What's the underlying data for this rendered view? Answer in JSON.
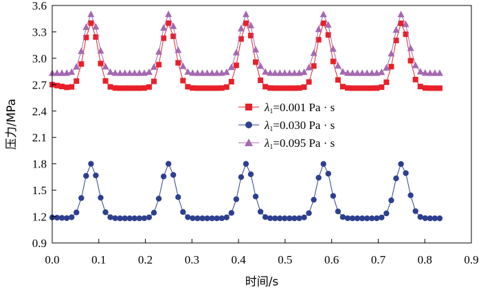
{
  "chart_data": {
    "type": "line",
    "title": "",
    "xlabel": "时间/s",
    "ylabel": "压力/MPa",
    "xlim": [
      0.0,
      0.9
    ],
    "ylim": [
      0.9,
      3.6
    ],
    "xticks": [
      0.0,
      0.1,
      0.2,
      0.3,
      0.4,
      0.5,
      0.6,
      0.7,
      0.8,
      0.9
    ],
    "xtick_labels": [
      "0.0",
      "0.1",
      "0.2",
      "0.3",
      "0.4",
      "0.5",
      "0.6",
      "0.7",
      "0.8",
      "0.9"
    ],
    "yticks": [
      0.9,
      1.2,
      1.5,
      1.8,
      2.1,
      2.4,
      2.7,
      3.0,
      3.3,
      3.6
    ],
    "ytick_labels": [
      "0.9",
      "1.2",
      "1.5",
      "1.8",
      "2.1",
      "2.4",
      "2.7",
      "3.0",
      "3.3",
      "3.6"
    ],
    "grid": false,
    "legend_position": "center-right",
    "period": 0.1667,
    "x_start": 0.0,
    "x_end": 0.833,
    "x_step": 0.0104,
    "series": [
      {
        "name": "λ1=0.001 Pa·s",
        "legend_symbol": "λ",
        "legend_sub": "1",
        "legend_value": "=0.001 Pa · s",
        "color": "#e8202a",
        "marker": "square",
        "baseline": 2.66,
        "peak": 3.4,
        "peak_phase": 0.0833,
        "start_value": 2.7
      },
      {
        "name": "λ1=0.030 Pa·s",
        "legend_symbol": "λ",
        "legend_sub": "1",
        "legend_value": "=0.030 Pa · s",
        "color": "#2e3f8f",
        "marker": "circle",
        "baseline": 1.18,
        "peak": 1.8,
        "peak_phase": 0.0833,
        "start_value": 1.19
      },
      {
        "name": "λ1=0.095 Pa·s",
        "legend_symbol": "λ",
        "legend_sub": "1",
        "legend_value": "=0.095 Pa · s",
        "color": "#a468b0",
        "marker": "triangle",
        "baseline": 2.83,
        "peak": 3.5,
        "peak_phase": 0.0833,
        "start_value": 2.81
      }
    ]
  }
}
